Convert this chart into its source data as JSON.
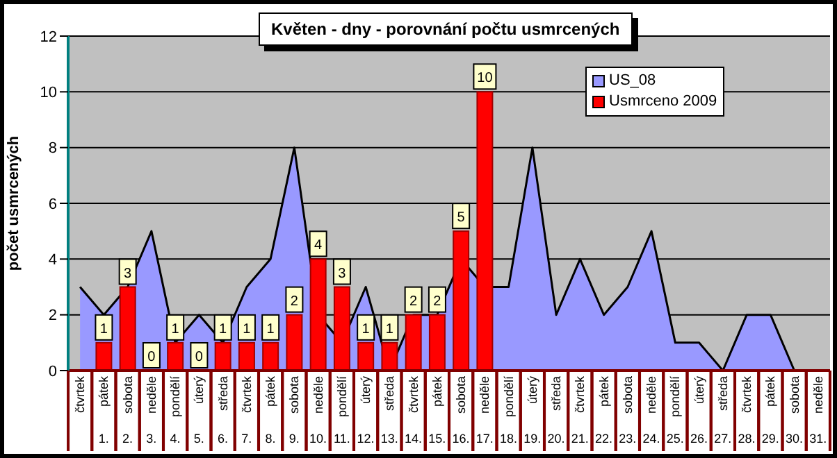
{
  "chart_data": {
    "type": "bar",
    "title": "Květen - dny - porovnání počtu usmrcených",
    "ylabel": "počet usmrcených",
    "categories": [
      "čtvrtek",
      "pátek 1.",
      "sobota 2.",
      "neděle 3.",
      "pondělí 4.",
      "úterý 5.",
      "středa 6.",
      "čtvrtek 7.",
      "pátek 8.",
      "sobota 9.",
      "neděle 10.",
      "pondělí 11.",
      "úterý 12.",
      "středa 13.",
      "čtvrtek 14.",
      "pátek 15.",
      "sobota 16.",
      "neděle 17.",
      "pondělí 18.",
      "úterý 19.",
      "středa 20.",
      "čtvrtek 21.",
      "pátek 22.",
      "sobota 23.",
      "neděle 24.",
      "pondělí 25.",
      "úterý 26.",
      "středa 27.",
      "čtvrtek 28.",
      "pátek 29.",
      "sobota 30.",
      "neděle 31."
    ],
    "series": [
      {
        "name": "US_08",
        "type": "area",
        "color": "#9999ff",
        "values": [
          3,
          2,
          3,
          5,
          1,
          2,
          1,
          3,
          4,
          8,
          2,
          1,
          3,
          0,
          2,
          2,
          4,
          3,
          3,
          8,
          2,
          4,
          2,
          3,
          5,
          1,
          1,
          0,
          2,
          2,
          0,
          null
        ]
      },
      {
        "name": "Usmrceno 2009",
        "color": "#ff0000",
        "data_labels": true,
        "values": [
          null,
          1,
          3,
          0,
          1,
          0,
          1,
          1,
          1,
          2,
          4,
          3,
          1,
          1,
          2,
          2,
          5,
          10,
          null,
          null,
          null,
          null,
          null,
          null,
          null,
          null,
          null,
          null,
          null,
          null,
          null,
          null
        ]
      }
    ],
    "ylim": [
      0,
      12
    ],
    "yticks": [
      0,
      2,
      4,
      6,
      8,
      10,
      12
    ],
    "grid": "y",
    "legend": "top right"
  }
}
